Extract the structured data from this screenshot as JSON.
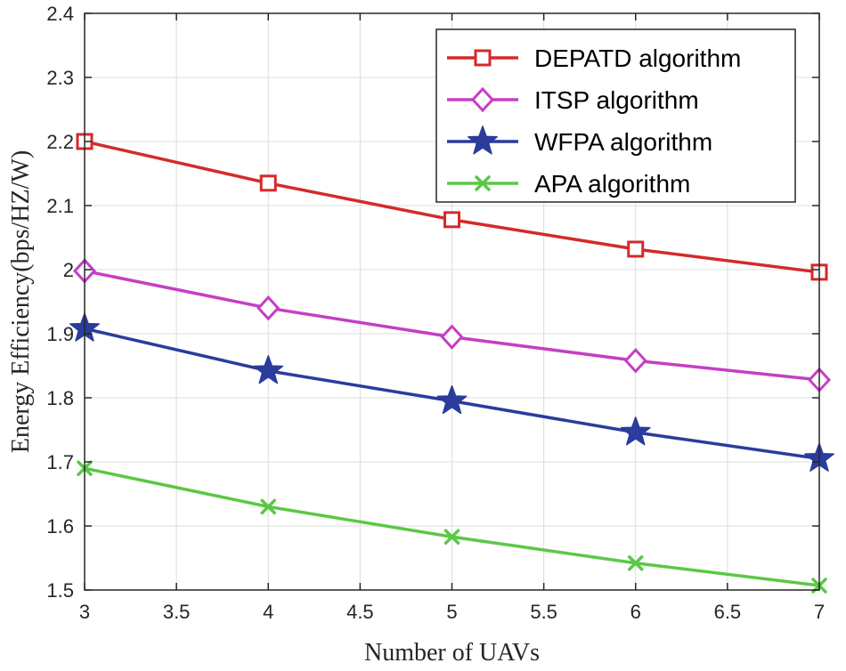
{
  "chart_data": {
    "type": "line",
    "title": "",
    "xlabel": "Number of UAVs",
    "ylabel": "Energy Efficiency(bps/HZ/W)",
    "xlim": [
      3,
      7
    ],
    "ylim": [
      1.5,
      2.4
    ],
    "xticks": [
      3,
      3.5,
      4,
      4.5,
      5,
      5.5,
      6,
      6.5,
      7
    ],
    "xtick_labels": [
      "3",
      "3.5",
      "4",
      "4.5",
      "5",
      "5.5",
      "6",
      "6.5",
      "7"
    ],
    "yticks": [
      1.5,
      1.6,
      1.7,
      1.8,
      1.9,
      2.0,
      2.1,
      2.2,
      2.3,
      2.4
    ],
    "ytick_labels": [
      "1.5",
      "1.6",
      "1.7",
      "1.8",
      "1.9",
      "2",
      "2.1",
      "2.2",
      "2.3",
      "2.4"
    ],
    "grid": true,
    "legend_position": "top-right",
    "x": [
      3,
      4,
      5,
      6,
      7
    ],
    "series": [
      {
        "name": "DEPATD algorithm",
        "color": "#d42a2a",
        "marker": "square",
        "values": [
          2.2,
          2.135,
          2.078,
          2.032,
          1.996
        ]
      },
      {
        "name": "ITSP algorithm",
        "color": "#c43fc4",
        "marker": "diamond",
        "values": [
          1.998,
          1.94,
          1.895,
          1.858,
          1.828
        ]
      },
      {
        "name": "WFPA algorithm",
        "color": "#2b3c9c",
        "marker": "star",
        "values": [
          1.908,
          1.842,
          1.795,
          1.746,
          1.705
        ]
      },
      {
        "name": "APA algorithm",
        "color": "#5bc845",
        "marker": "x",
        "values": [
          1.69,
          1.63,
          1.583,
          1.542,
          1.507
        ]
      }
    ]
  }
}
